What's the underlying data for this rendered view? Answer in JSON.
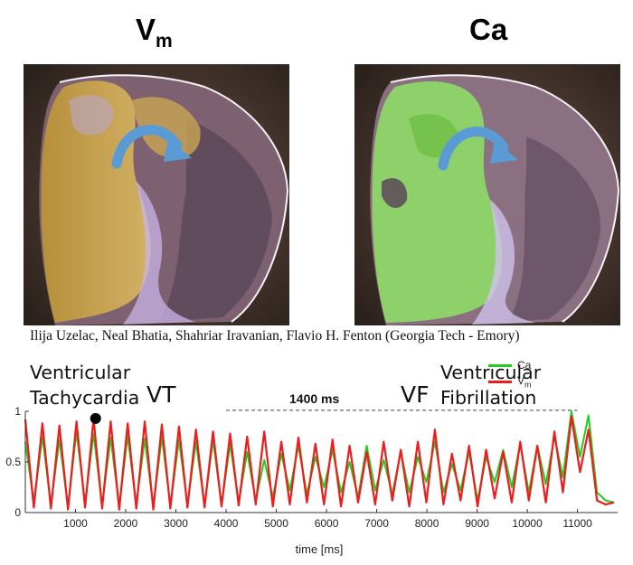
{
  "panels": {
    "vm": {
      "title_main": "V",
      "title_sub": "m"
    },
    "ca": {
      "title_main": "Ca"
    }
  },
  "credit": "Ilija Uzelac, Neal Bhatia, Shahriar Iravanian, Flavio H. Fenton (Georgia Tech - Emory)",
  "annotations": {
    "vt_line1": "Ventricular",
    "vt_line2": "Tachycardia",
    "vt_abbr": "VT",
    "vf_abbr": "VF",
    "vf_line1": "Ventricular",
    "vf_line2": "Fibrillation",
    "duration": "1400 ms"
  },
  "colors": {
    "ca": "#22cc22",
    "vm": "#ee1c1c",
    "arrow": "#5b9bd5"
  },
  "chart_data": {
    "type": "line",
    "xlabel": "time [ms]",
    "ylabel": "",
    "xlim": [
      0,
      11800
    ],
    "ylim": [
      0,
      1
    ],
    "xticks": [
      1000,
      2000,
      3000,
      4000,
      5000,
      6000,
      7000,
      8000,
      9000,
      10000,
      11000
    ],
    "yticks": [
      0,
      0.5,
      1
    ],
    "ytick_labels": [
      "0",
      "0.5",
      "1"
    ],
    "legend": {
      "position": "top-right",
      "entries": [
        "Ca",
        "V_m"
      ]
    },
    "legend_ca": "Ca",
    "legend_vm_main": "V",
    "legend_vm_sub": "m",
    "marker": {
      "x": 1400,
      "y": 0.93
    },
    "duration_bracket": {
      "x_start": 4000,
      "x_end": 11000,
      "y": 1.01
    },
    "series": [
      {
        "name": "Ca",
        "color": "#22cc22",
        "x": [
          0,
          170,
          340,
          510,
          680,
          850,
          1020,
          1190,
          1360,
          1530,
          1700,
          1870,
          2040,
          2210,
          2380,
          2550,
          2720,
          2890,
          3060,
          3230,
          3400,
          3570,
          3740,
          3910,
          4080,
          4250,
          4420,
          4590,
          4760,
          4930,
          5100,
          5270,
          5440,
          5610,
          5780,
          5950,
          6120,
          6290,
          6460,
          6630,
          6800,
          6970,
          7140,
          7310,
          7480,
          7650,
          7820,
          7990,
          8160,
          8330,
          8500,
          8670,
          8840,
          9010,
          9180,
          9350,
          9520,
          9690,
          9860,
          10030,
          10200,
          10370,
          10540,
          10710,
          10880,
          11050,
          11220,
          11390,
          11560,
          11730
        ],
        "y": [
          0.7,
          0.1,
          0.75,
          0.08,
          0.72,
          0.06,
          0.8,
          0.1,
          0.78,
          0.07,
          0.74,
          0.06,
          0.76,
          0.08,
          0.73,
          0.06,
          0.75,
          0.07,
          0.72,
          0.08,
          0.7,
          0.07,
          0.72,
          0.08,
          0.68,
          0.1,
          0.6,
          0.12,
          0.52,
          0.15,
          0.58,
          0.22,
          0.66,
          0.18,
          0.55,
          0.25,
          0.62,
          0.2,
          0.5,
          0.15,
          0.66,
          0.22,
          0.52,
          0.18,
          0.6,
          0.2,
          0.55,
          0.3,
          0.7,
          0.2,
          0.48,
          0.22,
          0.6,
          0.12,
          0.55,
          0.3,
          0.62,
          0.25,
          0.68,
          0.2,
          0.66,
          0.28,
          0.75,
          0.35,
          1.0,
          0.55,
          0.96,
          0.2,
          0.12,
          0.1
        ]
      },
      {
        "name": "V_m",
        "color": "#ee1c1c",
        "x": [
          0,
          170,
          340,
          510,
          680,
          850,
          1020,
          1190,
          1360,
          1530,
          1700,
          1870,
          2040,
          2210,
          2380,
          2550,
          2720,
          2890,
          3060,
          3230,
          3400,
          3570,
          3740,
          3910,
          4080,
          4250,
          4420,
          4590,
          4760,
          4930,
          5100,
          5270,
          5440,
          5610,
          5780,
          5950,
          6120,
          6290,
          6460,
          6630,
          6800,
          6970,
          7140,
          7310,
          7480,
          7650,
          7820,
          7990,
          8160,
          8330,
          8500,
          8670,
          8840,
          9010,
          9180,
          9350,
          9520,
          9690,
          9860,
          10030,
          10200,
          10370,
          10540,
          10710,
          10880,
          11050,
          11220,
          11390,
          11560,
          11730
        ],
        "y": [
          0.92,
          0.05,
          0.88,
          0.04,
          0.86,
          0.03,
          0.9,
          0.05,
          0.93,
          0.04,
          0.9,
          0.03,
          0.88,
          0.04,
          0.9,
          0.03,
          0.87,
          0.04,
          0.85,
          0.05,
          0.82,
          0.05,
          0.8,
          0.06,
          0.78,
          0.07,
          0.75,
          0.08,
          0.8,
          0.06,
          0.7,
          0.08,
          0.74,
          0.1,
          0.68,
          0.08,
          0.72,
          0.06,
          0.66,
          0.1,
          0.6,
          0.08,
          0.7,
          0.12,
          0.62,
          0.06,
          0.7,
          0.1,
          0.82,
          0.08,
          0.58,
          0.12,
          0.66,
          0.06,
          0.62,
          0.14,
          0.6,
          0.1,
          0.7,
          0.12,
          0.66,
          0.1,
          0.8,
          0.2,
          0.95,
          0.4,
          0.82,
          0.12,
          0.08,
          0.1
        ]
      }
    ]
  }
}
